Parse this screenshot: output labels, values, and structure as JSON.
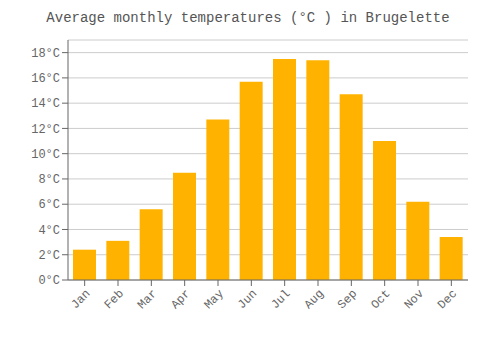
{
  "chart_data": {
    "type": "bar",
    "title": "Average monthly temperatures (°C ) in Brugelette",
    "categories": [
      "Jan",
      "Feb",
      "Mar",
      "Apr",
      "May",
      "Jun",
      "Jul",
      "Aug",
      "Sep",
      "Oct",
      "Nov",
      "Dec"
    ],
    "values": [
      2.4,
      3.1,
      5.6,
      8.5,
      12.7,
      15.7,
      17.5,
      17.4,
      14.7,
      11.0,
      6.2,
      3.4
    ],
    "color": "#FFB300",
    "ylim": [
      0,
      19
    ],
    "yticks": [
      {
        "value": 0,
        "label": "0°C"
      },
      {
        "value": 2,
        "label": "2°C"
      },
      {
        "value": 4,
        "label": "4°C"
      },
      {
        "value": 6,
        "label": "6°C"
      },
      {
        "value": 8,
        "label": "8°C"
      },
      {
        "value": 10,
        "label": "10°C"
      },
      {
        "value": 12,
        "label": "12°C"
      },
      {
        "value": 14,
        "label": "14°C"
      },
      {
        "value": 16,
        "label": "16°C"
      },
      {
        "value": 18,
        "label": "18°C"
      }
    ],
    "grid": true
  }
}
